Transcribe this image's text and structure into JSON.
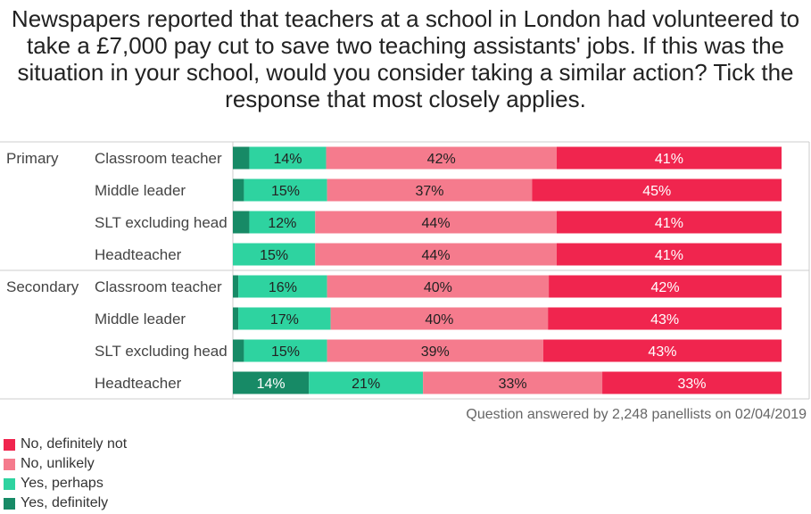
{
  "title": "Newspapers reported that teachers at a school in London had volunteered to take a £7,000 pay cut to save two teaching assistants' jobs. If this was the situation in your school, would you consider taking a similar action? Tick the response that most closely applies.",
  "footnote": "Question answered by 2,248 panellists on 02/04/2019",
  "legend": [
    {
      "label": "No, definitely not",
      "color": "#f0254e"
    },
    {
      "label": "No, unlikely",
      "color": "#f57b8d"
    },
    {
      "label": "Yes, perhaps",
      "color": "#2ed3a0"
    },
    {
      "label": "Yes, definitely",
      "color": "#178a66"
    }
  ],
  "chart_data": {
    "type": "bar",
    "orientation": "horizontal",
    "stacked": true,
    "groups": [
      "Primary",
      "Secondary"
    ],
    "series_order": [
      "Yes, definitely",
      "Yes, perhaps",
      "No, unlikely",
      "No, definitely not"
    ],
    "rows": [
      {
        "group": "Primary",
        "label": "Classroom teacher",
        "values": [
          3,
          14,
          42,
          41
        ],
        "labels": [
          "",
          "14%",
          "42%",
          "41%"
        ]
      },
      {
        "group": "Primary",
        "label": "Middle leader",
        "values": [
          2,
          15,
          37,
          45
        ],
        "labels": [
          "",
          "15%",
          "37%",
          "45%"
        ]
      },
      {
        "group": "Primary",
        "label": "SLT excluding head",
        "values": [
          3,
          12,
          44,
          41
        ],
        "labels": [
          "",
          "12%",
          "44%",
          "41%"
        ]
      },
      {
        "group": "Primary",
        "label": "Headteacher",
        "values": [
          0,
          15,
          44,
          41
        ],
        "labels": [
          "",
          "15%",
          "44%",
          "41%"
        ]
      },
      {
        "group": "Secondary",
        "label": "Classroom teacher",
        "values": [
          1,
          16,
          40,
          42
        ],
        "labels": [
          "",
          "16%",
          "40%",
          "42%"
        ]
      },
      {
        "group": "Secondary",
        "label": "Middle leader",
        "values": [
          1,
          17,
          40,
          43
        ],
        "labels": [
          "",
          "17%",
          "40%",
          "43%"
        ]
      },
      {
        "group": "Secondary",
        "label": "SLT excluding head",
        "values": [
          2,
          15,
          39,
          43
        ],
        "labels": [
          "",
          "15%",
          "39%",
          "43%"
        ]
      },
      {
        "group": "Secondary",
        "label": "Headteacher",
        "values": [
          14,
          21,
          33,
          33
        ],
        "labels": [
          "14%",
          "21%",
          "33%",
          "33%"
        ]
      }
    ],
    "colors": [
      "#178a66",
      "#2ed3a0",
      "#f57b8d",
      "#f0254e"
    ],
    "label_colors": [
      "#ffffff",
      "#222222",
      "#222222",
      "#ffffff"
    ],
    "xlim": [
      0,
      100
    ],
    "grid": false,
    "legend_position": "bottom-left"
  }
}
